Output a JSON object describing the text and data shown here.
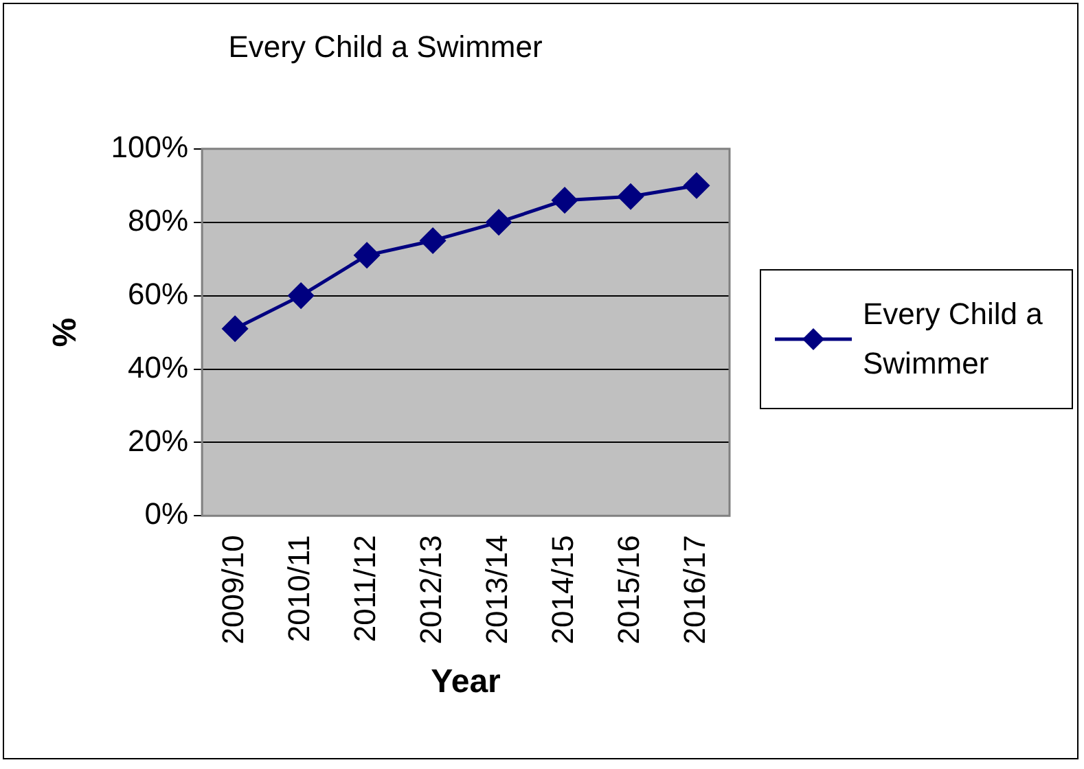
{
  "chart_data": {
    "type": "line",
    "title": "Every Child a Swimmer",
    "xlabel": "Year",
    "ylabel": "%",
    "categories": [
      "2009/10",
      "2010/11",
      "2011/12",
      "2012/13",
      "2013/14",
      "2014/15",
      "2015/16",
      "2016/17"
    ],
    "series": [
      {
        "name": "Every Child a Swimmer",
        "color": "#000080",
        "values": [
          51,
          60,
          71,
          75,
          80,
          86,
          87,
          90
        ]
      }
    ],
    "ylim": [
      0,
      100
    ],
    "yticks": [
      {
        "value": 0,
        "label": "0%"
      },
      {
        "value": 20,
        "label": "20%"
      },
      {
        "value": 40,
        "label": "40%"
      },
      {
        "value": 60,
        "label": "60%"
      },
      {
        "value": 80,
        "label": "80%"
      },
      {
        "value": 100,
        "label": "100%"
      }
    ],
    "grid": "y",
    "legend": "right",
    "marker": "diamond",
    "line_style": "solid"
  }
}
